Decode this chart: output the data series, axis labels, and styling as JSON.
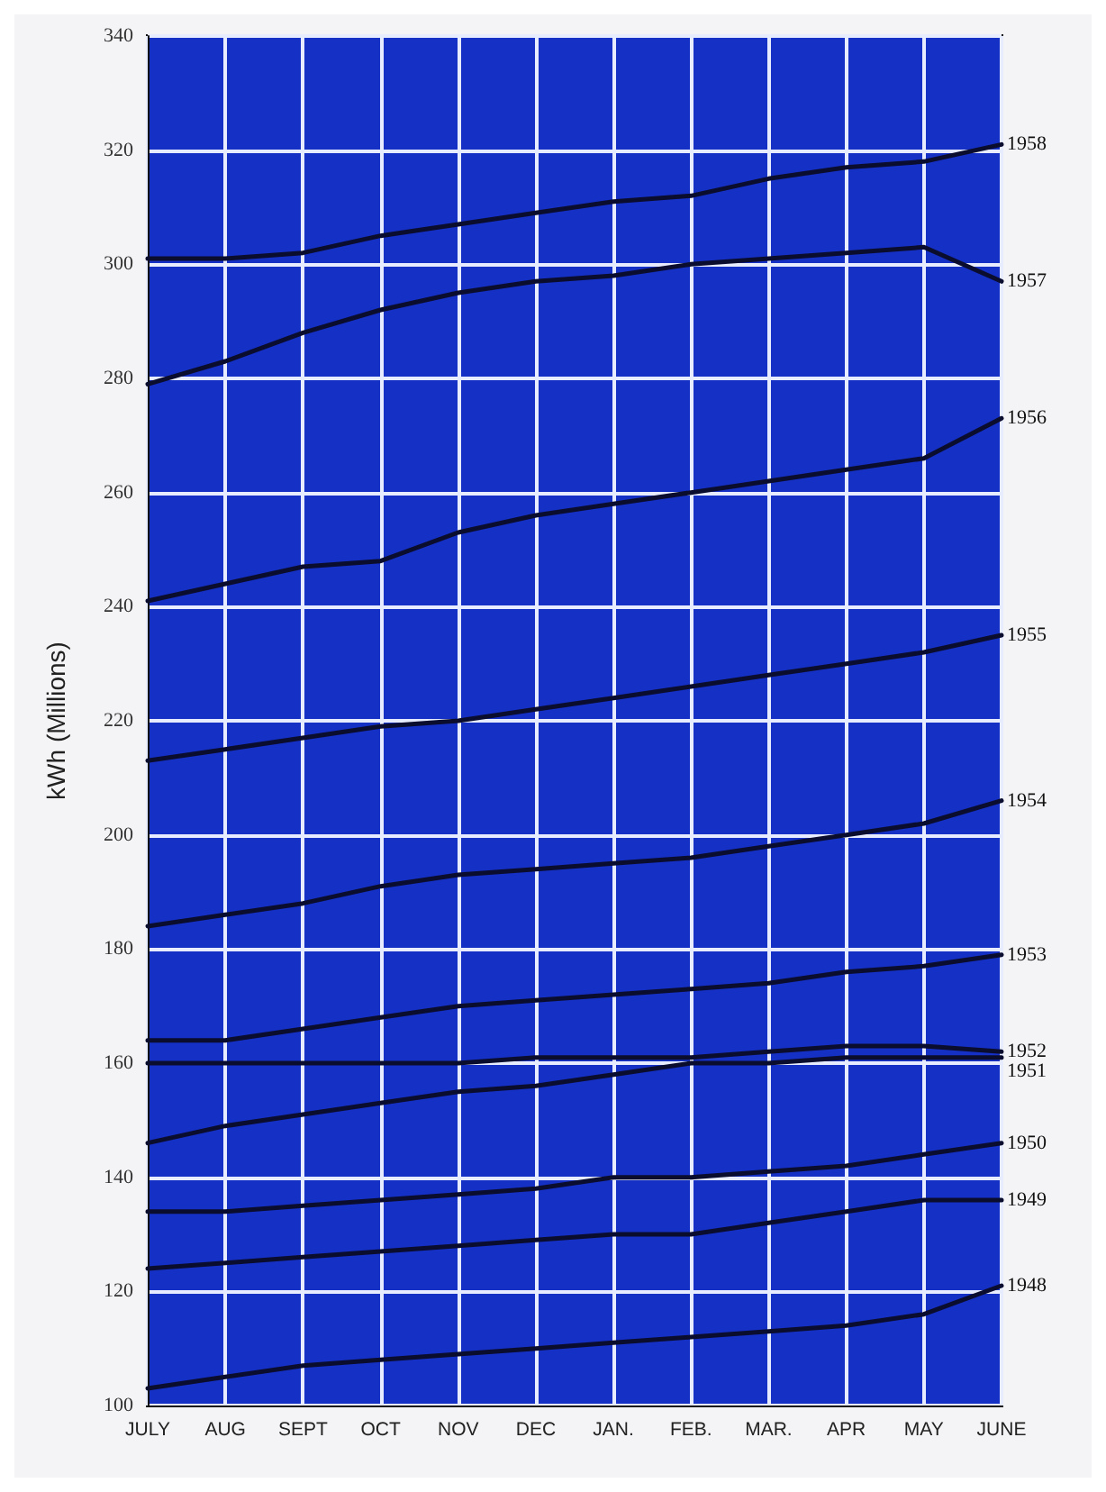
{
  "chart_data": {
    "type": "line",
    "ylabel": "kWh (Millions)",
    "categories": [
      "JULY",
      "AUG",
      "SEPT",
      "OCT",
      "NOV",
      "DEC",
      "JAN.",
      "FEB.",
      "MAR.",
      "APR",
      "MAY",
      "JUNE"
    ],
    "ylim": [
      100,
      340
    ],
    "yticks": [
      100,
      120,
      140,
      160,
      180,
      200,
      220,
      240,
      260,
      280,
      300,
      320,
      340
    ],
    "grid": true,
    "legend": false,
    "marker": "none",
    "line_style": "solid",
    "series": [
      {
        "name": "1958",
        "color": "#0b0d2e",
        "values": [
          301,
          301,
          302,
          305,
          307,
          309,
          311,
          312,
          315,
          317,
          318,
          321
        ]
      },
      {
        "name": "1957",
        "color": "#0b0d2e",
        "values": [
          279,
          283,
          288,
          292,
          295,
          297,
          298,
          300,
          301,
          302,
          303,
          297
        ]
      },
      {
        "name": "1956",
        "color": "#0b0d2e",
        "values": [
          241,
          244,
          247,
          248,
          253,
          256,
          258,
          260,
          262,
          264,
          266,
          273
        ]
      },
      {
        "name": "1955",
        "color": "#0b0d2e",
        "values": [
          213,
          215,
          217,
          219,
          220,
          222,
          224,
          226,
          228,
          230,
          232,
          235
        ]
      },
      {
        "name": "1954",
        "color": "#0b0d2e",
        "values": [
          184,
          186,
          188,
          191,
          193,
          194,
          195,
          196,
          198,
          200,
          202,
          206
        ]
      },
      {
        "name": "1953",
        "color": "#0b0d2e",
        "values": [
          164,
          164,
          166,
          168,
          170,
          171,
          172,
          173,
          174,
          176,
          177,
          179
        ]
      },
      {
        "name": "1952",
        "color": "#0b0d2e",
        "values": [
          160,
          160,
          160,
          160,
          160,
          161,
          161,
          161,
          162,
          163,
          163,
          162
        ]
      },
      {
        "name": "1951",
        "color": "#0b0d2e",
        "values": [
          146,
          149,
          151,
          153,
          155,
          156,
          158,
          160,
          160,
          161,
          161,
          161
        ]
      },
      {
        "name": "1950",
        "color": "#0b0d2e",
        "values": [
          134,
          134,
          135,
          136,
          137,
          138,
          140,
          140,
          141,
          142,
          144,
          146
        ]
      },
      {
        "name": "1949",
        "color": "#0b0d2e",
        "values": [
          124,
          125,
          126,
          127,
          128,
          129,
          130,
          130,
          132,
          134,
          136,
          136
        ]
      },
      {
        "name": "1948",
        "color": "#0b0d2e",
        "values": [
          103,
          105,
          107,
          108,
          109,
          110,
          111,
          112,
          113,
          114,
          116,
          121
        ]
      }
    ]
  }
}
